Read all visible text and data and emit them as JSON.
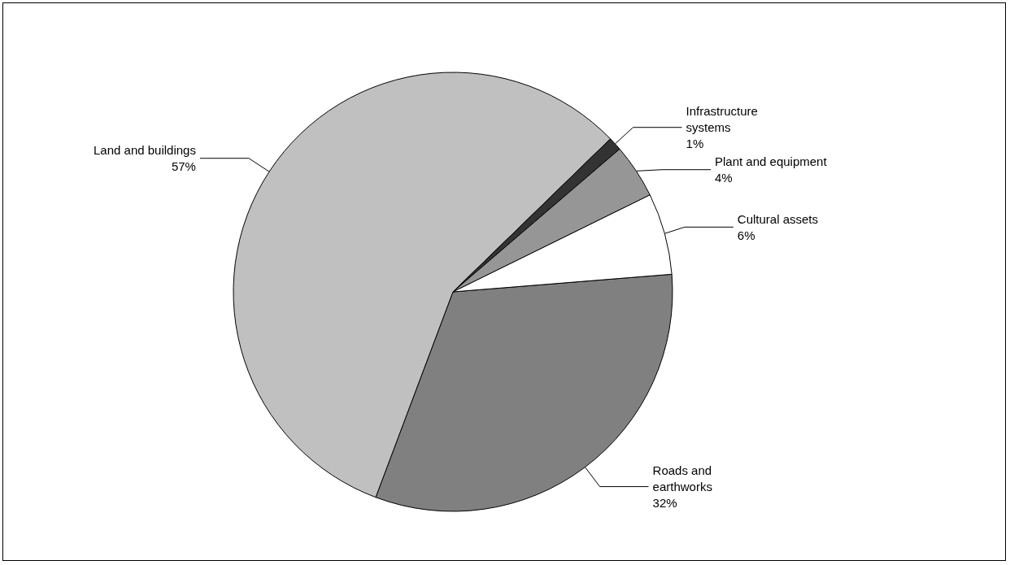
{
  "chart_data": {
    "type": "pie",
    "categories": [
      "Roads and earthworks",
      "Land and buildings",
      "Infrastructure systems",
      "Plant and equipment",
      "Cultural assets"
    ],
    "values": [
      32,
      57,
      1,
      4,
      6
    ],
    "value_labels": [
      "32%",
      "57%",
      "1%",
      "4%",
      "6%"
    ],
    "colors": [
      "#808080",
      "#c0c0c0",
      "#333333",
      "#969696",
      "#ffffff"
    ],
    "legend": false
  }
}
